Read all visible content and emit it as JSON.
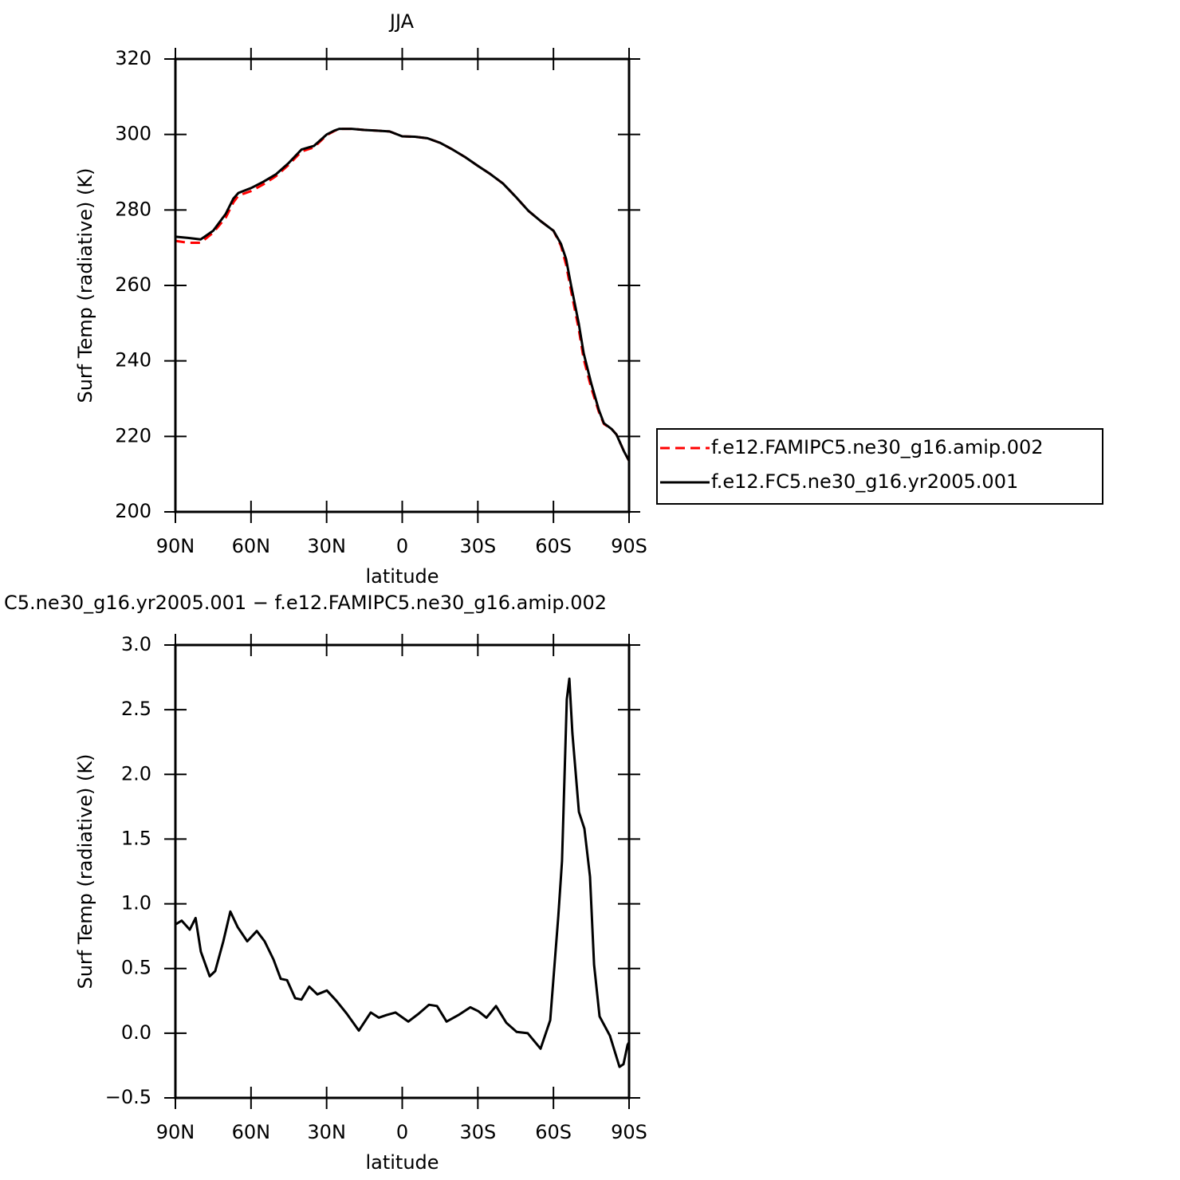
{
  "chart_data": [
    {
      "type": "line",
      "title": "JJA",
      "xlabel": "latitude",
      "ylabel": "Surf Temp (radiative) (K)",
      "x": [
        90,
        85,
        80,
        75,
        70,
        67,
        65,
        60,
        55,
        50,
        45,
        40,
        35,
        30,
        27,
        25,
        20,
        15,
        10,
        5,
        0,
        -5,
        -10,
        -15,
        -20,
        -25,
        -30,
        -35,
        -40,
        -45,
        -50,
        -55,
        -60,
        -63,
        -65,
        -67,
        -70,
        -72,
        -75,
        -78,
        -80,
        -83,
        -85,
        -88,
        -90
      ],
      "series": [
        {
          "name": "f.e12.FAMIPC5.ne30_g16.amip.002",
          "color": "#ff0000",
          "dash": true,
          "values": [
            271.8,
            271.3,
            271.3,
            274,
            278,
            282,
            283.8,
            285,
            286.8,
            289,
            292,
            295.5,
            296.6,
            299.8,
            300.9,
            301.5,
            301.5,
            301.2,
            301,
            300.8,
            299.5,
            299.4,
            299,
            297.8,
            296,
            294,
            291.7,
            289.5,
            287,
            283.5,
            279.8,
            277,
            274.5,
            270.5,
            265.5,
            258.5,
            248.5,
            240.5,
            232.8,
            226.5,
            223.3,
            222,
            220.5,
            216,
            213.5
          ]
        },
        {
          "name": "f.e12.FC5.ne30_g16.yr2005.001",
          "color": "#000000",
          "dash": false,
          "values": [
            272.9,
            272.6,
            272.2,
            274.5,
            279,
            283,
            284.5,
            285.8,
            287.5,
            289.5,
            292.5,
            296,
            297,
            300,
            301,
            301.5,
            301.5,
            301.2,
            301,
            300.8,
            299.5,
            299.4,
            299,
            297.8,
            296,
            294,
            291.7,
            289.5,
            287,
            283.5,
            279.8,
            277,
            274.5,
            271,
            267,
            260,
            250,
            242,
            234,
            227,
            223.5,
            222,
            220.5,
            216,
            213.5
          ]
        }
      ],
      "xlim": [
        90,
        -90
      ],
      "ylim": [
        200,
        320
      ],
      "xticks": [
        {
          "value": 90,
          "label": "90N"
        },
        {
          "value": 60,
          "label": "60N"
        },
        {
          "value": 30,
          "label": "30N"
        },
        0,
        {
          "value": -30,
          "label": "30S"
        },
        {
          "value": -60,
          "label": "60S"
        },
        {
          "value": -90,
          "label": "90S"
        }
      ],
      "yticks": [
        200,
        220,
        240,
        260,
        280,
        300,
        320
      ],
      "legend": "right"
    },
    {
      "type": "line",
      "title": "C5.ne30_g16.yr2005.001 − f.e12.FAMIPC5.ne30_g16.amip.002",
      "xlabel": "latitude",
      "ylabel": "Surf Temp (radiative) (K)",
      "x": [
        90,
        87.5,
        84.3,
        82,
        79.9,
        76.4,
        74.2,
        71,
        68.2,
        65.3,
        61.5,
        57.7,
        54.6,
        51.1,
        48.2,
        45.7,
        42.5,
        40,
        36.9,
        33.7,
        29.9,
        26.1,
        22,
        17.2,
        12.5,
        9.3,
        6.2,
        2.7,
        -2.4,
        -6.5,
        -10.6,
        -13.8,
        -17.6,
        -22.3,
        -27,
        -30.2,
        -33.4,
        -37.2,
        -41.3,
        -45.4,
        -49.8,
        -54.9,
        -58.7,
        -61.9,
        -63.4,
        -65.3,
        -66.3,
        -67.5,
        -70.1,
        -72.3,
        -74.5,
        -76.1,
        -78.3,
        -82.4,
        -86.2,
        -87.8,
        -89.4,
        -90
      ],
      "color": "#000000",
      "values": [
        0.84,
        0.87,
        0.8,
        0.89,
        0.63,
        0.44,
        0.48,
        0.71,
        0.94,
        0.82,
        0.71,
        0.79,
        0.71,
        0.57,
        0.42,
        0.41,
        0.27,
        0.26,
        0.36,
        0.3,
        0.33,
        0.25,
        0.15,
        0.02,
        0.16,
        0.12,
        0.14,
        0.16,
        0.09,
        0.15,
        0.22,
        0.21,
        0.09,
        0.14,
        0.2,
        0.17,
        0.12,
        0.21,
        0.08,
        0.01,
        0,
        -0.12,
        0.1,
        0.9,
        1.33,
        2.58,
        2.74,
        2.32,
        1.71,
        1.58,
        1.21,
        0.53,
        0.13,
        -0.02,
        -0.26,
        -0.24,
        -0.09,
        -0.07
      ],
      "xlim": [
        90,
        -90
      ],
      "ylim": [
        -0.5,
        3
      ],
      "xticks": [
        {
          "value": 90,
          "label": "90N"
        },
        {
          "value": 60,
          "label": "60N"
        },
        {
          "value": 30,
          "label": "30N"
        },
        0,
        {
          "value": -30,
          "label": "30S"
        },
        {
          "value": -60,
          "label": "60S"
        },
        {
          "value": -90,
          "label": "90S"
        }
      ],
      "yticks": [
        {
          "value": -0.5,
          "label": "−0.5"
        },
        {
          "value": 0,
          "label": "0.0"
        },
        {
          "value": 0.5,
          "label": "0.5"
        },
        {
          "value": 1,
          "label": "1.0"
        },
        {
          "value": 1.5,
          "label": "1.5"
        },
        {
          "value": 2,
          "label": "2.0"
        },
        {
          "value": 2.5,
          "label": "2.5"
        },
        {
          "value": 3,
          "label": "3.0"
        }
      ]
    }
  ]
}
